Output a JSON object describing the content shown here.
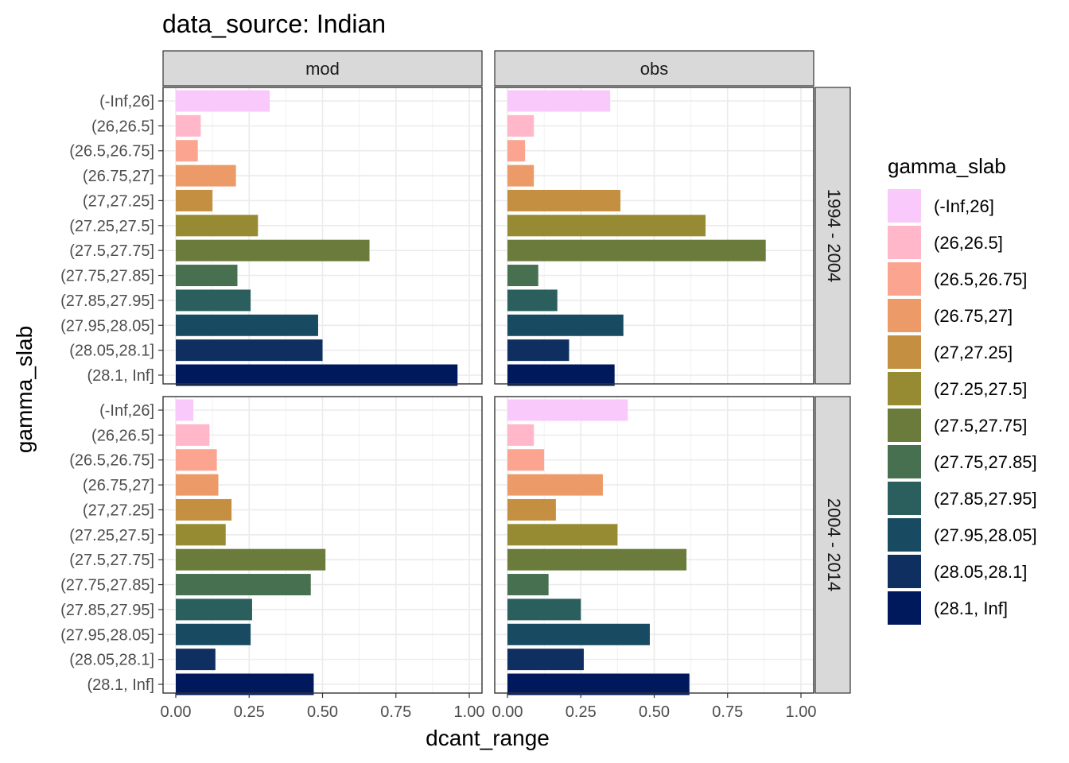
{
  "chart_data": {
    "type": "bar",
    "orientation": "horizontal",
    "title": "data_source: Indian",
    "xlabel": "dcant_range",
    "ylabel": "gamma_slab",
    "xlim": [
      0,
      1
    ],
    "x_ticks": [
      "0.00",
      "0.25",
      "0.50",
      "0.75",
      "1.00"
    ],
    "x_tick_values": [
      0,
      0.25,
      0.5,
      0.75,
      1.0
    ],
    "grid": true,
    "legend": {
      "title": "gamma_slab",
      "placement": "right"
    },
    "categories": [
      "(-Inf,26]",
      "(26,26.5]",
      "(26.5,26.75]",
      "(26.75,27]",
      "(27,27.25]",
      "(27.25,27.5]",
      "(27.5,27.75]",
      "(27.75,27.85]",
      "(27.85,27.95]",
      "(27.95,28.05]",
      "(28.05,28.1]",
      "(28.1, Inf]"
    ],
    "colors": [
      "#F8C9FA",
      "#FFB7C9",
      "#FBA490",
      "#EC9A68",
      "#C48F40",
      "#968A32",
      "#6A7B3C",
      "#467050",
      "#2A5F5E",
      "#184A62",
      "#0E2F5F",
      "#00195C"
    ],
    "facet_cols": [
      "mod",
      "obs"
    ],
    "facet_rows": [
      "1994 - 2004",
      "2004 - 2014"
    ],
    "panels": [
      {
        "row": "1994 - 2004",
        "col": "mod",
        "values": [
          0.32,
          0.085,
          0.075,
          0.205,
          0.125,
          0.28,
          0.66,
          0.21,
          0.255,
          0.485,
          0.5,
          0.96
        ]
      },
      {
        "row": "1994 - 2004",
        "col": "obs",
        "values": [
          0.35,
          0.09,
          0.06,
          0.09,
          0.385,
          0.675,
          0.88,
          0.105,
          0.17,
          0.395,
          0.21,
          0.365
        ]
      },
      {
        "row": "2004 - 2014",
        "col": "mod",
        "values": [
          0.06,
          0.115,
          0.14,
          0.145,
          0.19,
          0.17,
          0.51,
          0.46,
          0.26,
          0.255,
          0.135,
          0.47
        ]
      },
      {
        "row": "2004 - 2014",
        "col": "obs",
        "values": [
          0.41,
          0.09,
          0.125,
          0.325,
          0.165,
          0.375,
          0.61,
          0.14,
          0.25,
          0.485,
          0.26,
          0.62
        ]
      }
    ]
  }
}
